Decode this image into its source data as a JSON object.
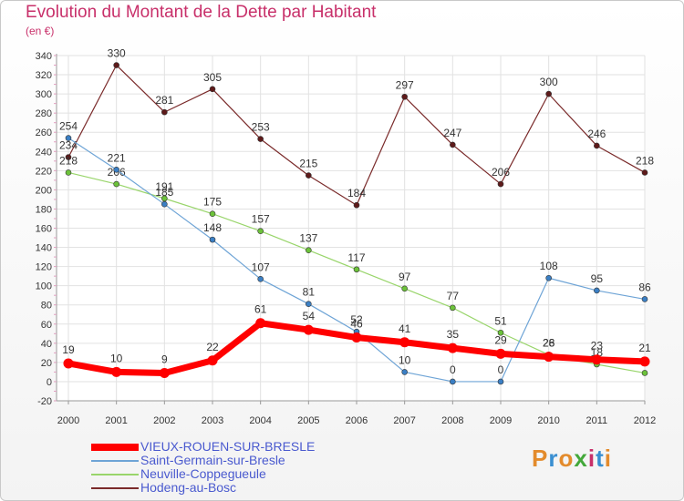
{
  "title": "Evolution du Montant de la Dette par Habitant",
  "unit": "(en €)",
  "brand": "Proxiti",
  "brand_colors": [
    "#e38b2c",
    "#3a8fd1",
    "#e38b2c",
    "#43a83a",
    "#c8306a",
    "#3a8fd1",
    "#e38b2c"
  ],
  "chart_data": {
    "type": "line",
    "x": [
      "2000",
      "2001",
      "2002",
      "2003",
      "2004",
      "2005",
      "2006",
      "2007",
      "2008",
      "2009",
      "2010",
      "2011",
      "2012"
    ],
    "ylim": [
      -20,
      340
    ],
    "yticks": [
      -20,
      0,
      20,
      40,
      60,
      80,
      100,
      120,
      140,
      160,
      180,
      200,
      220,
      240,
      260,
      280,
      300,
      320,
      340
    ],
    "grid": true,
    "legend_position": "bottom-left",
    "series": [
      {
        "name": "Hodeng-au-Bosc",
        "color": "#7a2a2a",
        "marker": "#5e1a1a",
        "width": 1.2,
        "values": [
          234,
          330,
          281,
          305,
          253,
          215,
          184,
          297,
          247,
          206,
          300,
          246,
          218
        ]
      },
      {
        "name": "Neuville-Coppegueule",
        "color": "#99d56b",
        "marker": "#6cc23a",
        "width": 1.2,
        "values": [
          218,
          206,
          191,
          175,
          157,
          137,
          117,
          97,
          77,
          51,
          28,
          18,
          9
        ]
      },
      {
        "name": "Saint-Germain-sur-Bresle",
        "color": "#6ea4d6",
        "marker": "#3b7fc4",
        "width": 1.2,
        "values": [
          254,
          221,
          185,
          148,
          107,
          81,
          52,
          10,
          0,
          0,
          108,
          95,
          86
        ]
      },
      {
        "name": "VIEUX-ROUEN-SUR-BRESLE",
        "color": "#ff0000",
        "marker": "#ff0000",
        "width": 7,
        "values": [
          19,
          10,
          9,
          22,
          61,
          54,
          46,
          41,
          35,
          29,
          26,
          23,
          21
        ]
      }
    ]
  }
}
